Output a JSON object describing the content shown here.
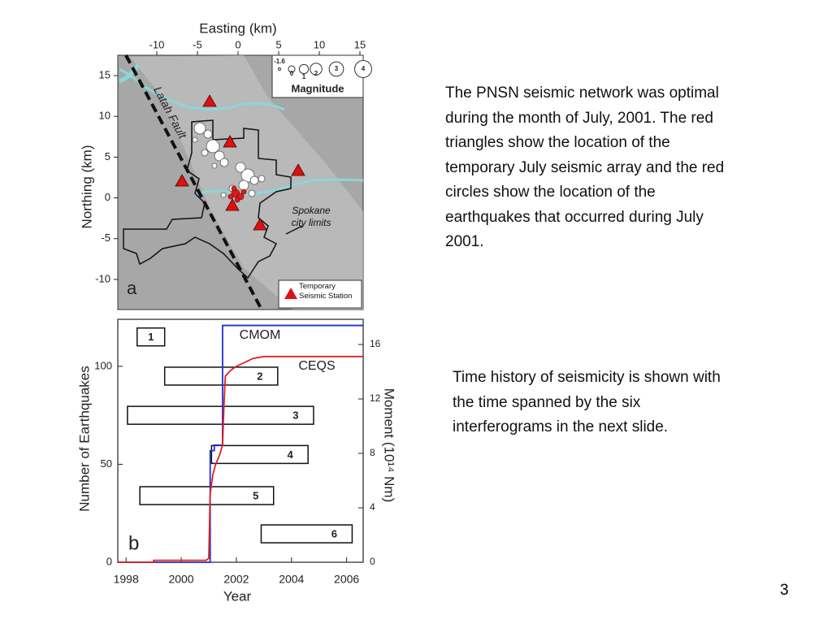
{
  "slide": {
    "paragraphs": [
      "The PNSN seismic network was optimal during the month of July, 2001. The red triangles show the location of the temporary July seismic array and the red circles show the location of the earthquakes that occurred during July 2001.",
      "Time history of seismicity is shown with the time spanned by the six interferograms in the next slide."
    ],
    "page_number": "3"
  },
  "map": {
    "panel_label": "a",
    "x_label": "Easting (km)",
    "y_label": "Northing (km)",
    "xlim": [
      -14.8,
      15.4
    ],
    "xticks": [
      -10,
      -5,
      0,
      5,
      10,
      15
    ],
    "ylim": [
      -13.7,
      17.5
    ],
    "yticks": [
      15,
      10,
      5,
      0,
      -5,
      -10
    ],
    "fault_label": "Latah Fault",
    "city_label": "Spokane city limits",
    "legend_title": "Magnitude",
    "magnitudes": [
      -1.6,
      0,
      1,
      2,
      3,
      4
    ],
    "station_label": "Temporary Seismic Station"
  },
  "chart_data": {
    "type": "line",
    "panel_label": "b",
    "x_label": "Year",
    "y_label": "Number of Earthquakes",
    "y2_label": "Moment (10¹⁴ Nm)",
    "xlim": [
      1997.7,
      2006.6
    ],
    "xticks": [
      1998,
      2000,
      2002,
      2004,
      2006
    ],
    "ylim": [
      0,
      124
    ],
    "yticks": [
      0,
      50,
      100
    ],
    "y2lim": [
      0,
      17.85
    ],
    "y2ticks": [
      0,
      4,
      8,
      12,
      16
    ],
    "series": [
      {
        "name": "CMOM",
        "color": "#1f2fd6",
        "axis": "y2",
        "x": [
          1997.7,
          2001.05,
          2001.05,
          2001.2,
          2001.2,
          2001.5,
          2001.5,
          2006.6
        ],
        "values": [
          0,
          0,
          8.2,
          8.2,
          8.6,
          8.6,
          17.4,
          17.4
        ]
      },
      {
        "name": "CEQS",
        "color": "#e02020",
        "x": [
          1997.7,
          1999.0,
          1999.0,
          2000.9,
          2001.0,
          2001.05,
          2001.15,
          2001.25,
          2001.4,
          2001.5,
          2001.55,
          2001.6,
          2001.8,
          2002.0,
          2002.3,
          2002.6,
          2003.0,
          2006.6
        ],
        "values": [
          0,
          0,
          1,
          1,
          2,
          35,
          45,
          50,
          55,
          60,
          80,
          95,
          98,
          100,
          102,
          104,
          105,
          105
        ]
      }
    ],
    "intervals": [
      {
        "label": "1",
        "start": 1998.4,
        "end": 1999.4,
        "level": 115
      },
      {
        "label": "2",
        "start": 1999.4,
        "end": 2003.5,
        "level": 95
      },
      {
        "label": "3",
        "start": 1998.05,
        "end": 2004.8,
        "level": 75
      },
      {
        "label": "4",
        "start": 2001.1,
        "end": 2004.6,
        "level": 55
      },
      {
        "label": "5",
        "start": 1998.5,
        "end": 2003.35,
        "level": 34
      },
      {
        "label": "6",
        "start": 2002.9,
        "end": 2006.2,
        "level": 14.5
      }
    ]
  }
}
